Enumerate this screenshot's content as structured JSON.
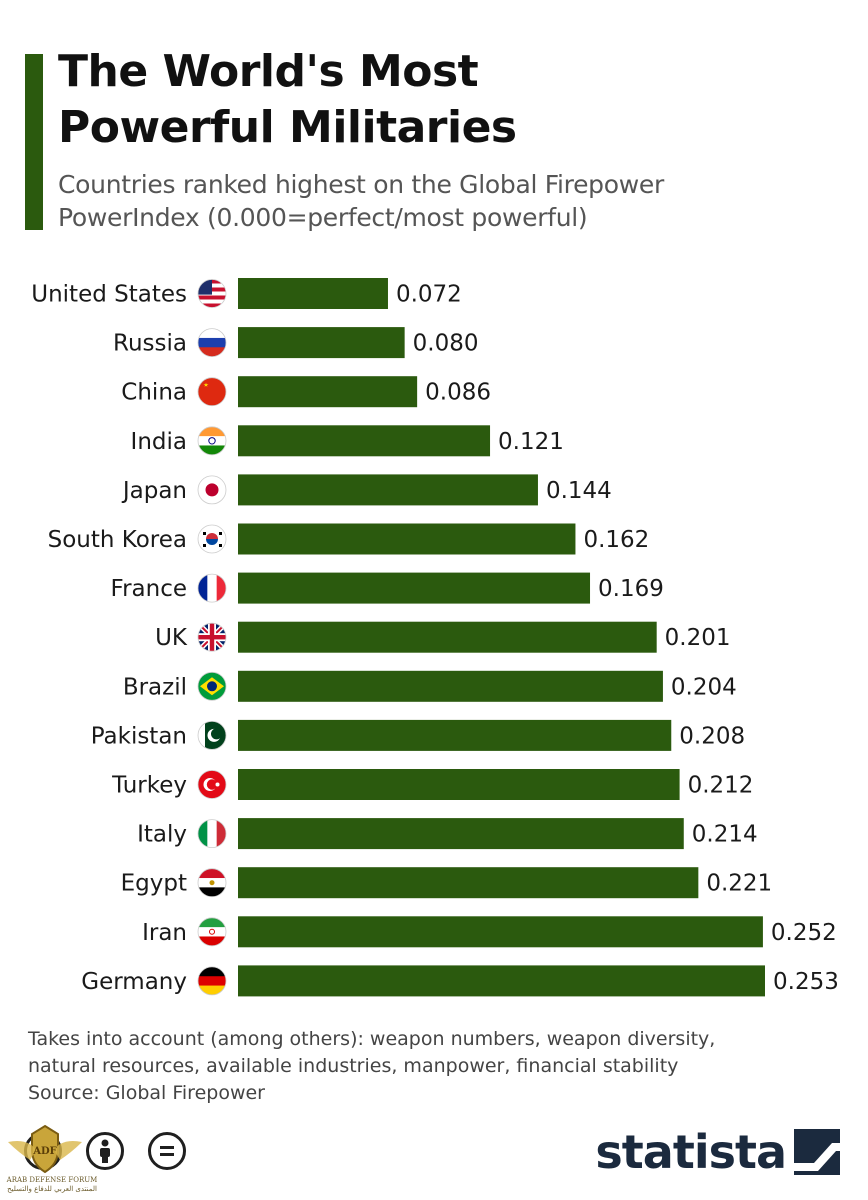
{
  "header": {
    "title_line1": "The World's Most",
    "title_line2": "Powerful Militaries",
    "subtitle_line1": "Countries ranked highest on the Global Firepower",
    "subtitle_line2": "PowerIndex (0.000=perfect/most powerful)"
  },
  "colors": {
    "accent": "#2b5a0e",
    "bar": "#2b5a0e"
  },
  "chart_data": {
    "type": "bar",
    "orientation": "horizontal",
    "title": "The World's Most Powerful Militaries",
    "subtitle": "Countries ranked highest on the Global Firepower PowerIndex (0.000=perfect/most powerful)",
    "categories": [
      "United States",
      "Russia",
      "China",
      "India",
      "Japan",
      "South Korea",
      "France",
      "UK",
      "Brazil",
      "Pakistan",
      "Turkey",
      "Italy",
      "Egypt",
      "Iran",
      "Germany"
    ],
    "values": [
      0.072,
      0.08,
      0.086,
      0.121,
      0.144,
      0.162,
      0.169,
      0.201,
      0.204,
      0.208,
      0.212,
      0.214,
      0.221,
      0.252,
      0.253
    ],
    "value_labels": [
      "0.072",
      "0.080",
      "0.086",
      "0.121",
      "0.144",
      "0.162",
      "0.169",
      "0.201",
      "0.204",
      "0.208",
      "0.212",
      "0.214",
      "0.221",
      "0.252",
      "0.253"
    ],
    "flags": [
      "us-flag-icon",
      "russia-flag-icon",
      "china-flag-icon",
      "india-flag-icon",
      "japan-flag-icon",
      "south-korea-flag-icon",
      "france-flag-icon",
      "uk-flag-icon",
      "brazil-flag-icon",
      "pakistan-flag-icon",
      "turkey-flag-icon",
      "italy-flag-icon",
      "egypt-flag-icon",
      "iran-flag-icon",
      "germany-flag-icon"
    ],
    "xlim": [
      0,
      0.253
    ],
    "grid": false,
    "xlabel": "",
    "ylabel": ""
  },
  "footer": {
    "note_line1": "Takes into account (among others): weapon numbers, weapon diversity,",
    "note_line2": "natural resources, available industries, manpower, financial stability",
    "source": "Source: Global Firepower",
    "license_icons": [
      "creative-commons-icon",
      "attribution-icon",
      "no-derivatives-icon"
    ],
    "brand": "statista",
    "watermark_line1": "ARAB DEFENSE FORUM",
    "watermark_line2": "المنتدى العربي للدفاع والتسليح"
  }
}
